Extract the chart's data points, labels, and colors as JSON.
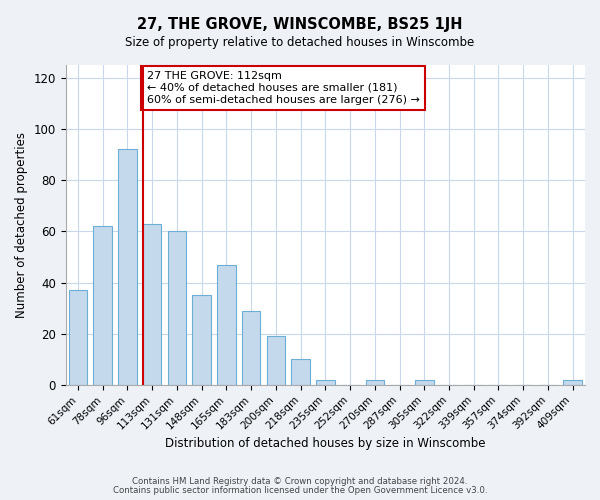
{
  "title": "27, THE GROVE, WINSCOMBE, BS25 1JH",
  "subtitle": "Size of property relative to detached houses in Winscombe",
  "xlabel": "Distribution of detached houses by size in Winscombe",
  "ylabel": "Number of detached properties",
  "bar_labels": [
    "61sqm",
    "78sqm",
    "96sqm",
    "113sqm",
    "131sqm",
    "148sqm",
    "165sqm",
    "183sqm",
    "200sqm",
    "218sqm",
    "235sqm",
    "252sqm",
    "270sqm",
    "287sqm",
    "305sqm",
    "322sqm",
    "339sqm",
    "357sqm",
    "374sqm",
    "392sqm",
    "409sqm"
  ],
  "bar_values": [
    37,
    62,
    92,
    63,
    60,
    35,
    47,
    29,
    19,
    10,
    2,
    0,
    2,
    0,
    2,
    0,
    0,
    0,
    0,
    0,
    2
  ],
  "bar_color": "#c5d9ed",
  "bar_edge_color": "#6baed6",
  "vline_x_index": 3,
  "vline_color": "#cc0000",
  "annotation_text": "27 THE GROVE: 112sqm\n← 40% of detached houses are smaller (181)\n60% of semi-detached houses are larger (276) →",
  "annotation_box_color": "white",
  "annotation_box_edge": "#cc0000",
  "ylim": [
    0,
    125
  ],
  "yticks": [
    0,
    20,
    40,
    60,
    80,
    100,
    120
  ],
  "footer_line1": "Contains HM Land Registry data © Crown copyright and database right 2024.",
  "footer_line2": "Contains public sector information licensed under the Open Government Licence v3.0.",
  "bg_color": "#eef2f7",
  "plot_bg_color": "#ffffff",
  "grid_color": "#c8d8ea",
  "bar_width": 0.75
}
